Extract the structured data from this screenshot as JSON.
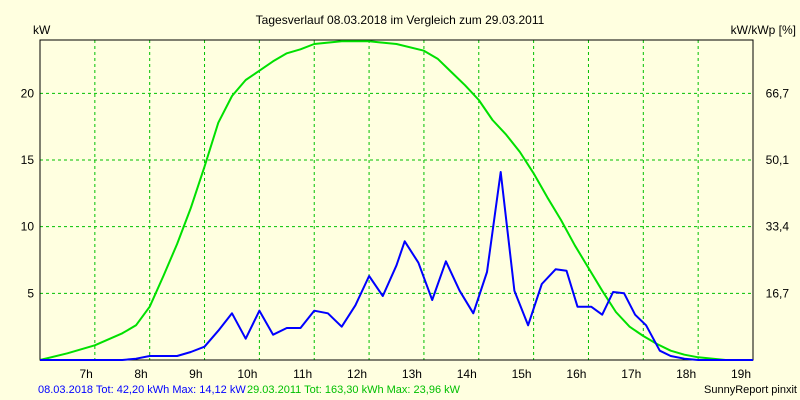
{
  "chart_data": {
    "type": "line",
    "title": "Tagesverlauf 08.03.2018 im Vergleich zum 29.03.2011",
    "ylabel_left": "kW",
    "ylabel_right": "kW/kWp [%]",
    "xlim": [
      6,
      19
    ],
    "ylim": [
      0,
      24
    ],
    "x_ticks": [
      7,
      8,
      9,
      10,
      11,
      12,
      13,
      14,
      15,
      16,
      17,
      18,
      19
    ],
    "x_tick_labels": [
      "7h",
      "8h",
      "9h",
      "10h",
      "11h",
      "12h",
      "13h",
      "14h",
      "15h",
      "16h",
      "17h",
      "18h",
      "19h"
    ],
    "y_ticks": [
      5,
      10,
      15,
      20
    ],
    "y_tick_labels": [
      "5",
      "10",
      "15",
      "20"
    ],
    "y_ticks_right": [
      5,
      10,
      15,
      20
    ],
    "y_tick_labels_right": [
      "16,7",
      "33,4",
      "50,1",
      "66,7"
    ],
    "grid": true,
    "series": [
      {
        "name": "08.03.2018",
        "color": "#0000ff",
        "x": [
          6.0,
          6.5,
          7.0,
          7.5,
          7.75,
          8.0,
          8.25,
          8.5,
          8.75,
          9.0,
          9.25,
          9.5,
          9.75,
          10.0,
          10.25,
          10.5,
          10.75,
          11.0,
          11.25,
          11.5,
          11.75,
          12.0,
          12.25,
          12.5,
          12.65,
          12.9,
          13.15,
          13.4,
          13.65,
          13.9,
          14.15,
          14.4,
          14.65,
          14.9,
          15.15,
          15.4,
          15.6,
          15.8,
          16.05,
          16.25,
          16.45,
          16.65,
          16.85,
          17.05,
          17.3,
          17.5,
          17.75,
          18.0,
          18.25,
          18.5,
          19.0
        ],
        "y": [
          0.0,
          0.0,
          0.0,
          0.0,
          0.1,
          0.3,
          0.3,
          0.3,
          0.6,
          1.0,
          2.2,
          3.5,
          1.6,
          3.7,
          1.9,
          2.4,
          2.4,
          3.7,
          3.5,
          2.5,
          4.1,
          6.3,
          4.8,
          7.1,
          8.9,
          7.3,
          4.5,
          7.4,
          5.2,
          3.5,
          6.6,
          14.1,
          5.2,
          2.6,
          5.7,
          6.8,
          6.7,
          4.0,
          4.0,
          3.4,
          5.1,
          5.0,
          3.4,
          2.6,
          0.7,
          0.3,
          0.1,
          0.0,
          0.0,
          0.0,
          0.0
        ]
      },
      {
        "name": "29.03.2011",
        "color": "#00e000",
        "x": [
          6.0,
          6.5,
          7.0,
          7.5,
          7.75,
          8.0,
          8.25,
          8.5,
          8.75,
          9.0,
          9.25,
          9.5,
          9.75,
          10.0,
          10.25,
          10.5,
          10.75,
          11.0,
          11.5,
          12.0,
          12.5,
          13.0,
          13.25,
          13.5,
          13.75,
          14.0,
          14.25,
          14.5,
          14.75,
          15.0,
          15.25,
          15.5,
          15.75,
          16.0,
          16.25,
          16.5,
          16.75,
          17.0,
          17.25,
          17.5,
          17.75,
          18.0,
          18.5,
          19.0
        ],
        "y": [
          0.0,
          0.5,
          1.1,
          2.0,
          2.6,
          4.0,
          6.3,
          8.7,
          11.4,
          14.5,
          17.8,
          19.8,
          21.0,
          21.7,
          22.4,
          23.0,
          23.3,
          23.7,
          23.9,
          23.9,
          23.7,
          23.2,
          22.6,
          21.6,
          20.6,
          19.5,
          18.0,
          16.9,
          15.6,
          14.0,
          12.2,
          10.5,
          8.6,
          6.9,
          5.2,
          3.6,
          2.5,
          1.8,
          1.2,
          0.7,
          0.4,
          0.2,
          0.0,
          0.0
        ]
      }
    ]
  },
  "footer": {
    "series1_text": "08.03.2018 Tot: 42,20 kWh Max: 14,12 kW",
    "series2_text": "29.03.2011 Tot: 163,30 kWh Max: 23,96 kW",
    "credit": "SunnyReport pinxit"
  }
}
